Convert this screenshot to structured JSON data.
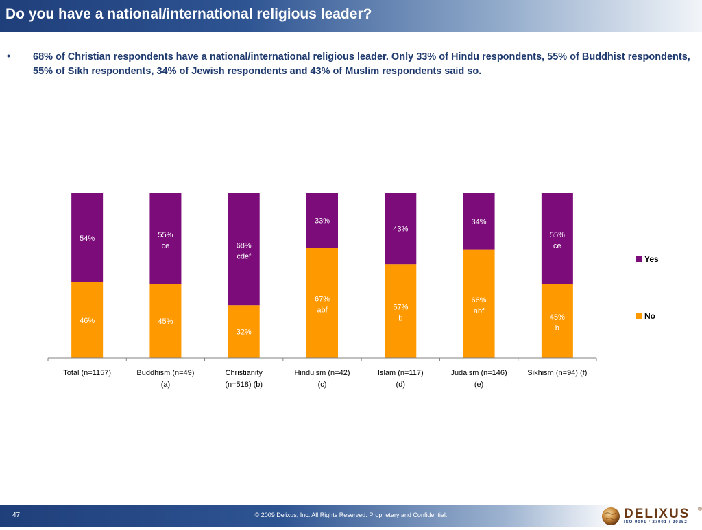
{
  "header": {
    "title": "Do you have a national/international religious leader?"
  },
  "summary": {
    "bullet": "•",
    "text": "68% of Christian respondents have a national/international religious leader. Only 33% of Hindu respondents, 55% of Buddhist respondents, 55% of Sikh respondents, 34% of Jewish respondents and 43% of Muslim respondents said so."
  },
  "colors": {
    "yes": "#7b0c7a",
    "no": "#ff9900",
    "label": "#ffffff",
    "title_bar": "#1f3f7a"
  },
  "chart_data": {
    "type": "bar",
    "stacked": true,
    "categories": [
      [
        "Total (n=1157)"
      ],
      [
        "Buddhism (n=49)",
        "(a)"
      ],
      [
        "Christianity",
        "(n=518) (b)"
      ],
      [
        "Hinduism (n=42)",
        "(c)"
      ],
      [
        "Islam (n=117)",
        "(d)"
      ],
      [
        "Judaism (n=146)",
        "(e)"
      ],
      [
        "Sikhism (n=94) (f)"
      ]
    ],
    "ylim": [
      0,
      100
    ],
    "legend_position": "right",
    "series": [
      {
        "name": "No",
        "values": [
          46,
          45,
          32,
          67,
          57,
          66,
          45
        ],
        "labels": [
          "46%",
          "45%",
          "32%",
          "67%",
          "57%",
          "66%",
          "45%"
        ],
        "sig": [
          "",
          "",
          "",
          "abf",
          "b",
          "abf",
          "b"
        ]
      },
      {
        "name": "Yes",
        "values": [
          54,
          55,
          68,
          33,
          43,
          34,
          55
        ],
        "labels": [
          "54%",
          "55%",
          "68%",
          "33%",
          "43%",
          "34%",
          "55%"
        ],
        "sig": [
          "",
          "ce",
          "cdef",
          "",
          "",
          "",
          "ce"
        ]
      }
    ],
    "legend": [
      {
        "label": "Yes",
        "series": "Yes"
      },
      {
        "label": "No",
        "series": "No"
      }
    ]
  },
  "footer": {
    "page_number": "47",
    "copyright": "© 2009 Delixus, Inc. All Rights Reserved. Proprietary and Confidential.",
    "logo_text": "DELIXUS",
    "logo_sub": "ISO 9001 / 27001 / 20252",
    "logo_reg": "®"
  }
}
